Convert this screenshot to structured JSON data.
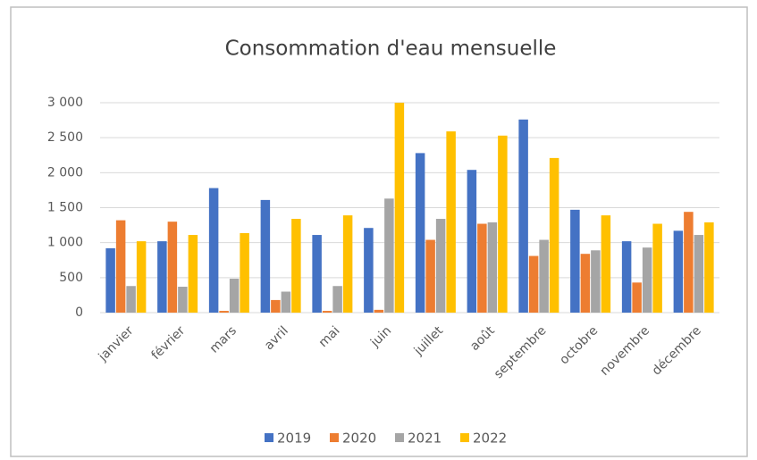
{
  "chart_data": {
    "type": "bar",
    "title": "Consommation d'eau mensuelle",
    "categories": [
      "janvier",
      "février",
      "mars",
      "avril",
      "mai",
      "juin",
      "juillet",
      "août",
      "septembre",
      "octobre",
      "novembre",
      "décembre"
    ],
    "series": [
      {
        "name": "2019",
        "color": "#4472c4",
        "values": [
          920,
          1020,
          1780,
          1610,
          1110,
          1210,
          2280,
          2040,
          2760,
          1470,
          1020,
          1170
        ]
      },
      {
        "name": "2020",
        "color": "#ed7d31",
        "values": [
          1320,
          1300,
          25,
          180,
          25,
          40,
          1040,
          1270,
          810,
          840,
          430,
          1440
        ]
      },
      {
        "name": "2021",
        "color": "#a5a5a5",
        "values": [
          380,
          370,
          485,
          300,
          380,
          1630,
          1340,
          1290,
          1040,
          890,
          930,
          1110
        ]
      },
      {
        "name": "2022",
        "color": "#ffc000",
        "values": [
          1020,
          1110,
          1136,
          1340,
          1390,
          3000,
          2590,
          2530,
          2210,
          1390,
          1270,
          1290
        ]
      }
    ],
    "ylim": [
      0,
      3000
    ],
    "yticks": [
      0,
      500,
      {
        "value": 1000,
        "label": "1 000"
      },
      {
        "value": 1500,
        "label": "1 500"
      },
      {
        "value": 2000,
        "label": "2 000"
      },
      {
        "value": 2500,
        "label": "2 500"
      },
      {
        "value": 3000,
        "label": "3 000"
      }
    ],
    "grid": true,
    "legend": "bottom"
  }
}
